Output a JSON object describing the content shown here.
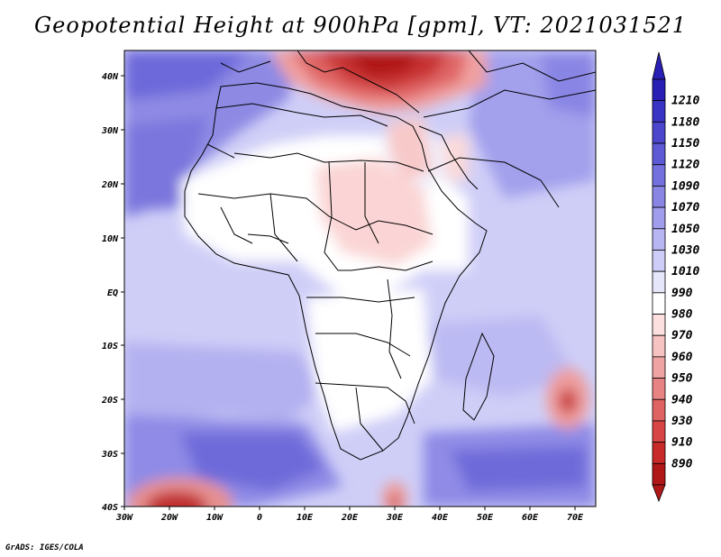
{
  "title": "Geopotential Height at 900hPa [gpm], VT: 2021031521",
  "credit": "GrADS: IGES/COLA",
  "map": {
    "region": "Africa",
    "lon_range": [
      -30,
      75
    ],
    "lat_range": [
      -40,
      45
    ],
    "lon_ticks": [
      "30W",
      "20W",
      "10W",
      "0",
      "10E",
      "20E",
      "30E",
      "40E",
      "50E",
      "60E",
      "70E"
    ],
    "lat_ticks": [
      "40N",
      "30N",
      "20N",
      "10N",
      "EQ",
      "10S",
      "20S",
      "30S",
      "40S"
    ],
    "features": [
      "Mediterranean low (red, 890-980 gpm)",
      "Sahara/Sudan lower heights (990-1010 gpm)",
      "southern Indian Ocean low near 20S 69E",
      "South Atlantic low near 40S 20W"
    ]
  },
  "colorbar": {
    "levels": [
      "1210",
      "1180",
      "1150",
      "1120",
      "1090",
      "1070",
      "1050",
      "1030",
      "1010",
      "990",
      "980",
      "970",
      "960",
      "950",
      "940",
      "930",
      "910",
      "890"
    ],
    "colors": [
      "#2a1fb4",
      "#3a34c4",
      "#4b46cc",
      "#5e5ad6",
      "#7470de",
      "#8985e4",
      "#a09ded",
      "#b7b5f2",
      "#cecdf7",
      "#e6e6fa",
      "#ffffff",
      "#fce0e0",
      "#f7c2c2",
      "#f0a3a3",
      "#e88383",
      "#e06363",
      "#d84545",
      "#c82a2a",
      "#b01818"
    ],
    "top_color": "#2a1fb4",
    "bottom_color": "#b01818"
  }
}
